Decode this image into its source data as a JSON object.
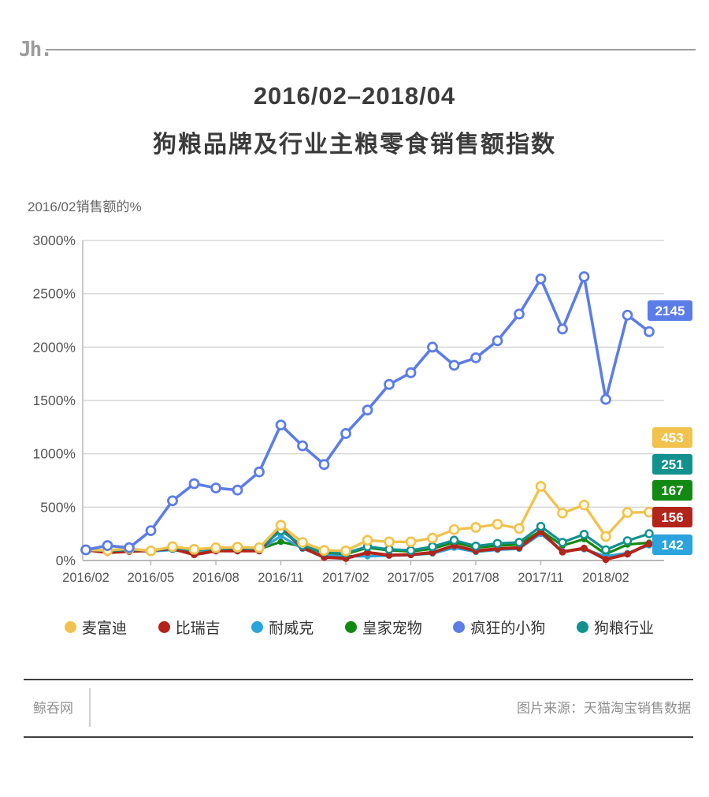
{
  "page": {
    "logo": "Jh.",
    "title_line1": "2016/02–2018/04",
    "title_line2": "狗粮品牌及行业主粮零食销售额指数"
  },
  "footer": {
    "site": "鲸吞网",
    "source": "图片来源：天猫淘宝销售数据"
  },
  "chart_data": {
    "type": "line",
    "title": "2016/02–2018/04 狗粮品牌及行业主粮零食销售额指数",
    "ylabel": "2016/02销售额的%",
    "ylim": [
      0,
      3000
    ],
    "grid": "horizontal",
    "legend_position": "bottom",
    "y_ticks": [
      {
        "label": "3000%",
        "value": 3000
      },
      {
        "label": "2500%",
        "value": 2500
      },
      {
        "label": "2000%",
        "value": 2000
      },
      {
        "label": "1500%",
        "value": 1500
      },
      {
        "label": "1000%",
        "value": 1000
      },
      {
        "label": "500%",
        "value": 500
      },
      {
        "label": "0%",
        "value": 0
      }
    ],
    "x_tick_labels": [
      "2016/02",
      "2016/05",
      "2016/08",
      "2016/11",
      "2017/02",
      "2017/05",
      "2017/08",
      "2017/11",
      "2018/02"
    ],
    "categories": [
      "2016/02",
      "2016/03",
      "2016/04",
      "2016/05",
      "2016/06",
      "2016/07",
      "2016/08",
      "2016/09",
      "2016/10",
      "2016/11",
      "2016/12",
      "2017/01",
      "2017/02",
      "2017/03",
      "2017/04",
      "2017/05",
      "2017/06",
      "2017/07",
      "2017/08",
      "2017/09",
      "2017/10",
      "2017/11",
      "2017/12",
      "2018/01",
      "2018/02",
      "2018/03",
      "2018/04"
    ],
    "series": [
      {
        "name": "麦富迪",
        "color": "#F1C24D",
        "final_label": "453",
        "values": [
          100,
          95,
          110,
          90,
          130,
          105,
          120,
          125,
          120,
          330,
          170,
          95,
          90,
          190,
          175,
          175,
          210,
          290,
          310,
          340,
          300,
          695,
          445,
          520,
          225,
          450,
          453
        ]
      },
      {
        "name": "比瑞吉",
        "color": "#B3241B",
        "final_label": "156",
        "values": [
          100,
          75,
          85,
          95,
          110,
          55,
          90,
          90,
          90,
          300,
          120,
          30,
          20,
          75,
          50,
          55,
          75,
          140,
          90,
          110,
          120,
          270,
          80,
          115,
          10,
          60,
          156
        ]
      },
      {
        "name": "耐威克",
        "color": "#2BA3DC",
        "final_label": "142",
        "values": [
          100,
          80,
          90,
          85,
          100,
          70,
          95,
          95,
          95,
          230,
          110,
          50,
          40,
          40,
          45,
          50,
          65,
          120,
          80,
          100,
          110,
          250,
          90,
          105,
          40,
          70,
          142
        ]
      },
      {
        "name": "皇家宠物",
        "color": "#128912",
        "final_label": "167",
        "values": [
          100,
          85,
          95,
          90,
          110,
          95,
          105,
          110,
          105,
          175,
          130,
          70,
          60,
          120,
          95,
          85,
          110,
          170,
          120,
          140,
          150,
          280,
          140,
          200,
          60,
          150,
          167
        ]
      },
      {
        "name": "疯狂的小狗",
        "color": "#5C7DE8",
        "final_label": "2145",
        "values": [
          100,
          140,
          120,
          280,
          560,
          720,
          680,
          660,
          830,
          1270,
          1075,
          900,
          1190,
          1410,
          1650,
          1760,
          2000,
          1830,
          1900,
          2060,
          2310,
          2640,
          2170,
          2660,
          1510,
          2300,
          2145
        ]
      },
      {
        "name": "狗粮行业",
        "color": "#12918F",
        "final_label": "251",
        "values": [
          100,
          90,
          100,
          95,
          115,
          100,
          110,
          115,
          110,
          280,
          140,
          80,
          70,
          130,
          105,
          95,
          130,
          190,
          135,
          160,
          170,
          320,
          170,
          245,
          100,
          185,
          251
        ]
      }
    ],
    "badges": [
      {
        "label": "2145",
        "color": "#5C7DE8"
      },
      {
        "label": "453",
        "color": "#F1C24D"
      },
      {
        "label": "251",
        "color": "#12918F"
      },
      {
        "label": "167",
        "color": "#128912"
      },
      {
        "label": "156",
        "color": "#B3241B"
      },
      {
        "label": "142",
        "color": "#2BA3DC"
      }
    ]
  }
}
